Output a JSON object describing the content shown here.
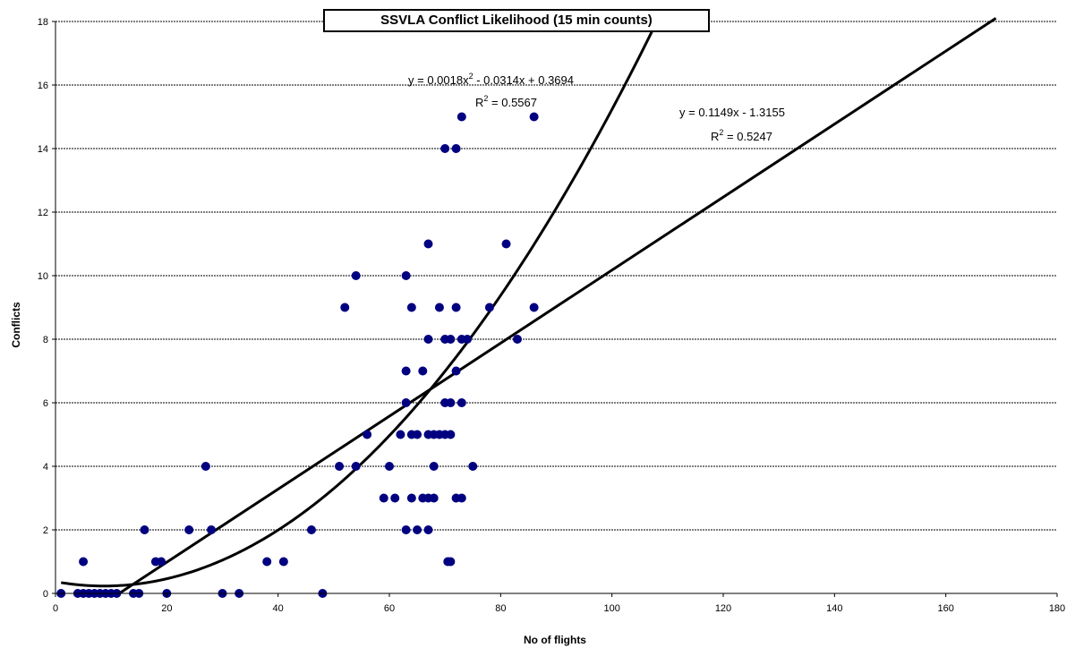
{
  "chart_data": {
    "type": "scatter",
    "title": "SSVLA Conflict Likelihood (15 min counts)",
    "xlabel": "No of flights",
    "ylabel": "Conflicts",
    "xlim": [
      0,
      180
    ],
    "ylim": [
      0,
      18
    ],
    "xticks": [
      0,
      20,
      40,
      60,
      80,
      100,
      120,
      140,
      160,
      180
    ],
    "yticks": [
      0,
      2,
      4,
      6,
      8,
      10,
      12,
      14,
      16,
      18
    ],
    "grid": "horizontal",
    "marker_color": "#000080",
    "points": [
      {
        "x": 1,
        "y": 0
      },
      {
        "x": 4,
        "y": 0
      },
      {
        "x": 5,
        "y": 0
      },
      {
        "x": 6,
        "y": 0
      },
      {
        "x": 7,
        "y": 0
      },
      {
        "x": 8,
        "y": 0
      },
      {
        "x": 9,
        "y": 0
      },
      {
        "x": 10,
        "y": 0
      },
      {
        "x": 11,
        "y": 0
      },
      {
        "x": 14,
        "y": 0
      },
      {
        "x": 15,
        "y": 0
      },
      {
        "x": 20,
        "y": 0
      },
      {
        "x": 30,
        "y": 0
      },
      {
        "x": 33,
        "y": 0
      },
      {
        "x": 48,
        "y": 0
      },
      {
        "x": 5,
        "y": 1
      },
      {
        "x": 18,
        "y": 1
      },
      {
        "x": 19,
        "y": 1
      },
      {
        "x": 38,
        "y": 1
      },
      {
        "x": 41,
        "y": 1
      },
      {
        "x": 70.5,
        "y": 1
      },
      {
        "x": 71,
        "y": 1
      },
      {
        "x": 16,
        "y": 2
      },
      {
        "x": 24,
        "y": 2
      },
      {
        "x": 28,
        "y": 2
      },
      {
        "x": 46,
        "y": 2
      },
      {
        "x": 63,
        "y": 2
      },
      {
        "x": 65,
        "y": 2
      },
      {
        "x": 67,
        "y": 2
      },
      {
        "x": 59,
        "y": 3
      },
      {
        "x": 61,
        "y": 3
      },
      {
        "x": 64,
        "y": 3
      },
      {
        "x": 66,
        "y": 3
      },
      {
        "x": 67,
        "y": 3
      },
      {
        "x": 68,
        "y": 3
      },
      {
        "x": 72,
        "y": 3
      },
      {
        "x": 73,
        "y": 3
      },
      {
        "x": 27,
        "y": 4
      },
      {
        "x": 51,
        "y": 4
      },
      {
        "x": 54,
        "y": 4
      },
      {
        "x": 60,
        "y": 4
      },
      {
        "x": 68,
        "y": 4
      },
      {
        "x": 75,
        "y": 4
      },
      {
        "x": 56,
        "y": 5
      },
      {
        "x": 62,
        "y": 5
      },
      {
        "x": 64,
        "y": 5
      },
      {
        "x": 65,
        "y": 5
      },
      {
        "x": 67,
        "y": 5
      },
      {
        "x": 68,
        "y": 5
      },
      {
        "x": 69,
        "y": 5
      },
      {
        "x": 70,
        "y": 5
      },
      {
        "x": 71,
        "y": 5
      },
      {
        "x": 63,
        "y": 6
      },
      {
        "x": 70,
        "y": 6
      },
      {
        "x": 71,
        "y": 6
      },
      {
        "x": 73,
        "y": 6
      },
      {
        "x": 63,
        "y": 7
      },
      {
        "x": 66,
        "y": 7
      },
      {
        "x": 72,
        "y": 7
      },
      {
        "x": 67,
        "y": 8
      },
      {
        "x": 70,
        "y": 8
      },
      {
        "x": 71,
        "y": 8
      },
      {
        "x": 73,
        "y": 8
      },
      {
        "x": 74,
        "y": 8
      },
      {
        "x": 83,
        "y": 8
      },
      {
        "x": 52,
        "y": 9
      },
      {
        "x": 64,
        "y": 9
      },
      {
        "x": 69,
        "y": 9
      },
      {
        "x": 72,
        "y": 9
      },
      {
        "x": 78,
        "y": 9
      },
      {
        "x": 86,
        "y": 9
      },
      {
        "x": 54,
        "y": 10
      },
      {
        "x": 63,
        "y": 10
      },
      {
        "x": 67,
        "y": 11
      },
      {
        "x": 81,
        "y": 11
      },
      {
        "x": 70,
        "y": 14
      },
      {
        "x": 72,
        "y": 14
      },
      {
        "x": 73,
        "y": 15
      },
      {
        "x": 86,
        "y": 15
      }
    ],
    "trendlines": [
      {
        "type": "polynomial",
        "coefficients": [
          0.0018,
          -0.0314,
          0.3694
        ],
        "x_range": [
          1,
          108
        ],
        "equation": "y = 0.0018x",
        "equation_sup": "2",
        "equation_rest": " - 0.0314x + 0.3694",
        "r2_label": "R",
        "r2_sup": "2",
        "r2_rest": " = 0.5567"
      },
      {
        "type": "linear",
        "coefficients": [
          0.1149,
          -1.3155
        ],
        "x_range": [
          11.45,
          169
        ],
        "equation": "y = 0.1149x - 1.3155",
        "r2_label": "R",
        "r2_sup": "2",
        "r2_rest": " = 0.5247"
      }
    ]
  }
}
